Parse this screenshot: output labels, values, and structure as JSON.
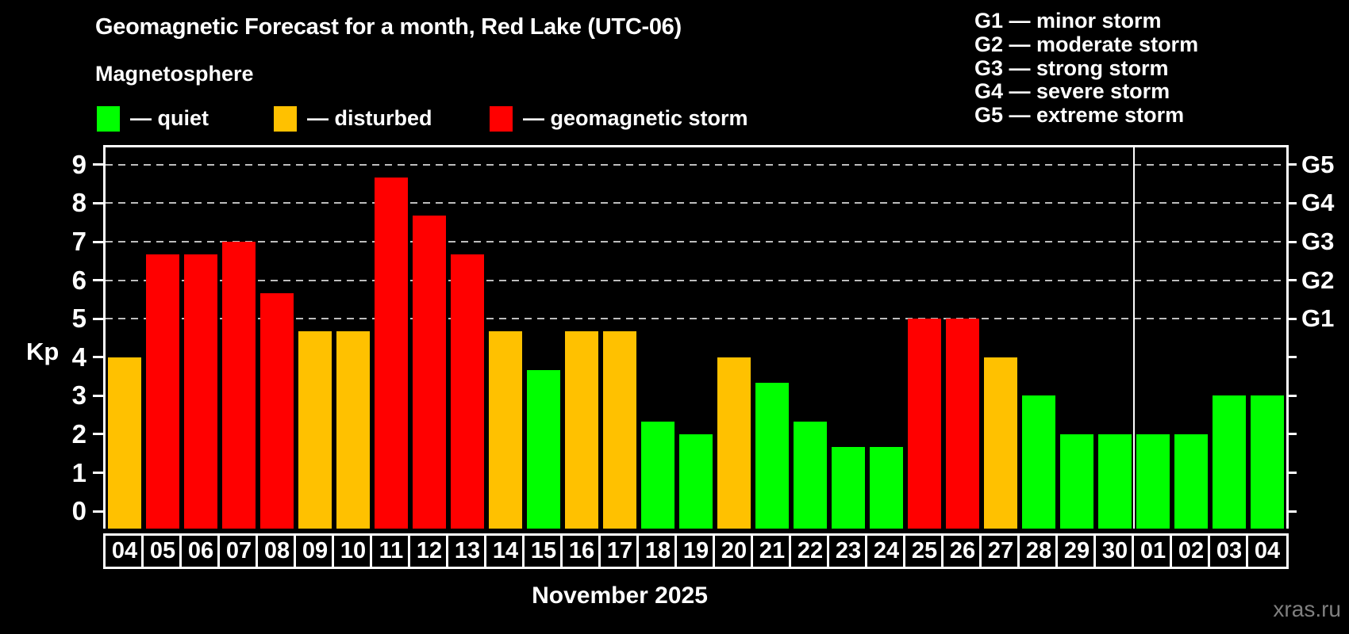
{
  "header": {
    "title": "Geomagnetic Forecast for a month, Red Lake (UTC-06)",
    "subtitle": "Magnetosphere"
  },
  "legend": {
    "items": [
      {
        "label": "— quiet",
        "status": "quiet",
        "color": "#00ff00"
      },
      {
        "label": "— disturbed",
        "status": "disturbed",
        "color": "#ffc100"
      },
      {
        "label": "— geomagnetic storm",
        "status": "storm",
        "color": "#ff0000"
      }
    ]
  },
  "storm_legend": {
    "items": [
      "G1 — minor storm",
      "G2 — moderate storm",
      "G3 — strong storm",
      "G4 — severe storm",
      "G5 — extreme storm"
    ]
  },
  "chart_data": {
    "type": "bar",
    "title": "Geomagnetic Forecast for a month, Red Lake (UTC-06)",
    "xlabel": "November 2025",
    "ylabel": "Kp",
    "ylim": [
      0,
      9
    ],
    "yticks": [
      0,
      1,
      2,
      3,
      4,
      5,
      6,
      7,
      8,
      9
    ],
    "gridlines_at": [
      5,
      6,
      7,
      8,
      9
    ],
    "grid_style": "dashed",
    "right_axis_labels": [
      {
        "label": "G1",
        "value": 5
      },
      {
        "label": "G2",
        "value": 6
      },
      {
        "label": "G3",
        "value": 7
      },
      {
        "label": "G4",
        "value": 8
      },
      {
        "label": "G5",
        "value": 9
      }
    ],
    "categories": [
      "04",
      "05",
      "06",
      "07",
      "08",
      "09",
      "10",
      "11",
      "12",
      "13",
      "14",
      "15",
      "16",
      "17",
      "18",
      "19",
      "20",
      "21",
      "22",
      "23",
      "24",
      "25",
      "26",
      "27",
      "28",
      "29",
      "30",
      "01",
      "02",
      "03",
      "04"
    ],
    "values": [
      4,
      6.67,
      6.67,
      7,
      5.67,
      4.67,
      4.67,
      8.67,
      7.67,
      6.67,
      4.67,
      3.67,
      4.67,
      4.67,
      2.33,
      2,
      4,
      3.33,
      2.33,
      1.67,
      1.67,
      5,
      5,
      4,
      3,
      2,
      2,
      2,
      2,
      3,
      3
    ],
    "statuses": [
      "disturbed",
      "storm",
      "storm",
      "storm",
      "storm",
      "disturbed",
      "disturbed",
      "storm",
      "storm",
      "storm",
      "disturbed",
      "quiet",
      "disturbed",
      "disturbed",
      "quiet",
      "quiet",
      "disturbed",
      "quiet",
      "quiet",
      "quiet",
      "quiet",
      "storm",
      "storm",
      "disturbed",
      "quiet",
      "quiet",
      "quiet",
      "quiet",
      "quiet",
      "quiet",
      "quiet"
    ],
    "status_colors": {
      "quiet": "#00ff00",
      "disturbed": "#ffc100",
      "storm": "#ff0000"
    },
    "month_divider_after_index": 27,
    "colors": {
      "frame": "#ffffff",
      "grid": "#bdbdbd",
      "background": "#000000"
    }
  },
  "watermark": "xras.ru"
}
